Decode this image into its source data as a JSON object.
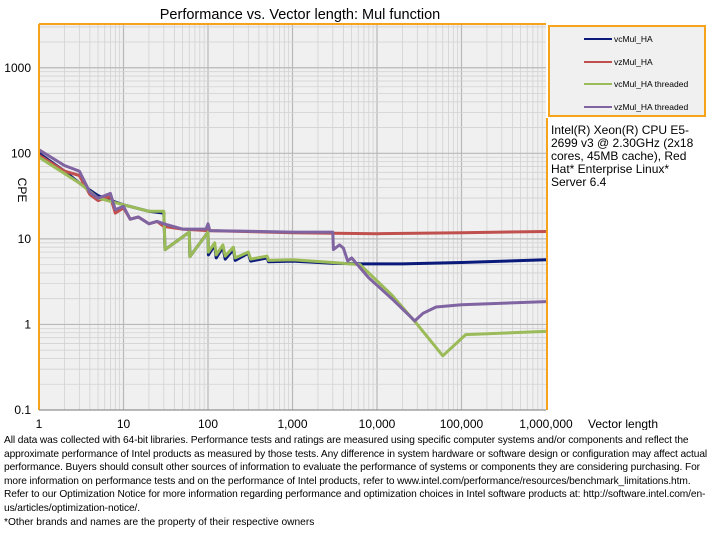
{
  "chart_data": {
    "type": "line",
    "title": "Performance vs. Vector length: Mul function",
    "xlabel": "Vector length",
    "ylabel": "CPE",
    "xscale": "log",
    "yscale": "log",
    "xlim": [
      1,
      1000000
    ],
    "ylim": [
      0.1,
      3162
    ],
    "grid": true,
    "legend_position": "top-right",
    "x_ticks": [
      1,
      10,
      100,
      1000,
      10000,
      100000,
      1000000
    ],
    "x_tick_labels": [
      "1",
      "10",
      "100",
      "1,000",
      "10,000",
      "100,000",
      "1,000,000"
    ],
    "y_ticks": [
      0.1,
      1,
      10,
      100,
      1000
    ],
    "y_tick_labels": [
      "0.1",
      "1",
      "10",
      "100",
      "1000"
    ],
    "series": [
      {
        "name": "vcMul_HA",
        "color": "#0a1a7a",
        "points": [
          [
            1,
            100
          ],
          [
            2,
            62
          ],
          [
            3,
            45
          ],
          [
            5,
            32
          ],
          [
            8,
            27
          ],
          [
            10,
            25
          ],
          [
            20,
            21
          ],
          [
            30,
            20
          ],
          [
            31,
            7.5
          ],
          [
            60,
            12
          ],
          [
            61,
            6.2
          ],
          [
            100,
            12
          ],
          [
            101,
            6.5
          ],
          [
            120,
            8.5
          ],
          [
            125,
            6
          ],
          [
            150,
            8
          ],
          [
            160,
            5.8
          ],
          [
            200,
            7.5
          ],
          [
            210,
            5.6
          ],
          [
            300,
            6.8
          ],
          [
            320,
            5.5
          ],
          [
            500,
            6
          ],
          [
            520,
            5.4
          ],
          [
            1000,
            5.5
          ],
          [
            3000,
            5.2
          ],
          [
            6300,
            5.1
          ],
          [
            20000,
            5.1
          ],
          [
            100000,
            5.3
          ],
          [
            1000000,
            5.7
          ]
        ]
      },
      {
        "name": "vzMul_HA",
        "color": "#c0504d",
        "points": [
          [
            1,
            95
          ],
          [
            2,
            62
          ],
          [
            3,
            55
          ],
          [
            4,
            33
          ],
          [
            5,
            28
          ],
          [
            6,
            30
          ],
          [
            7,
            31
          ],
          [
            8,
            20
          ],
          [
            10,
            23
          ],
          [
            12,
            17
          ],
          [
            15,
            18
          ],
          [
            20,
            15
          ],
          [
            25,
            16
          ],
          [
            30,
            14
          ],
          [
            50,
            13
          ],
          [
            100,
            12.5
          ],
          [
            1000,
            11.8
          ],
          [
            10000,
            11.5
          ],
          [
            100000,
            11.8
          ],
          [
            1000000,
            12.2
          ]
        ]
      },
      {
        "name": "vcMul_HA threaded",
        "color": "#9bbb59",
        "points": [
          [
            1,
            90
          ],
          [
            3,
            45
          ],
          [
            5,
            30
          ],
          [
            10,
            25
          ],
          [
            20,
            21
          ],
          [
            30,
            21
          ],
          [
            31,
            7.5
          ],
          [
            60,
            12
          ],
          [
            61,
            6.2
          ],
          [
            100,
            12
          ],
          [
            101,
            7
          ],
          [
            120,
            9
          ],
          [
            125,
            6.5
          ],
          [
            150,
            8.5
          ],
          [
            160,
            6.3
          ],
          [
            200,
            8
          ],
          [
            210,
            6
          ],
          [
            300,
            7
          ],
          [
            320,
            5.8
          ],
          [
            500,
            6.3
          ],
          [
            520,
            5.6
          ],
          [
            1000,
            5.7
          ],
          [
            3000,
            5.3
          ],
          [
            6300,
            5
          ],
          [
            15000,
            2.2
          ],
          [
            30000,
            1
          ],
          [
            60000,
            0.43
          ],
          [
            112000,
            0.76
          ],
          [
            1000000,
            0.83
          ]
        ]
      },
      {
        "name": "vzMul_HA threaded",
        "color": "#8064a2",
        "points": [
          [
            1,
            110
          ],
          [
            2,
            72
          ],
          [
            3,
            62
          ],
          [
            4,
            35
          ],
          [
            5,
            30
          ],
          [
            6,
            32
          ],
          [
            7,
            34
          ],
          [
            8,
            22
          ],
          [
            10,
            24
          ],
          [
            12,
            17
          ],
          [
            15,
            18
          ],
          [
            20,
            15
          ],
          [
            25,
            16
          ],
          [
            30,
            15
          ],
          [
            50,
            13
          ],
          [
            95,
            13
          ],
          [
            100,
            15
          ],
          [
            105,
            12.5
          ],
          [
            1000,
            12
          ],
          [
            3000,
            12
          ],
          [
            3050,
            7.5
          ],
          [
            3600,
            8.5
          ],
          [
            4000,
            7.8
          ],
          [
            4500,
            5.5
          ],
          [
            5000,
            6
          ],
          [
            8000,
            3.5
          ],
          [
            15000,
            2
          ],
          [
            28000,
            1.1
          ],
          [
            35000,
            1.35
          ],
          [
            50000,
            1.6
          ],
          [
            100000,
            1.7
          ],
          [
            1000000,
            1.85
          ]
        ]
      }
    ]
  },
  "system_note": "Intel(R) Xeon(R) CPU E5-2699 v3 @ 2.30GHz (2x18 cores, 45MB cache), Red Hat* Enterprise Linux* Server 6.4",
  "disclaimer": "All data was collected with 64-bit libraries. Performance tests and ratings are measured using specific computer systems and/or components and reflect the approximate performance of Intel products as measured by those tests. Any difference in system hardware or software design or configuration may affect actual performance. Buyers should consult other sources of information to evaluate the performance of systems or components they are considering purchasing. For more information on performance tests and on the performance of Intel products, refer to www.intel.com/performance/resources/benchmark_limitations.htm. Refer to our Optimization Notice for more information regarding performance and optimization choices in Intel software products at: http://software.intel.com/en-us/articles/optimization-notice/.",
  "trademark_note": "*Other brands and names are the property of their respective owners"
}
